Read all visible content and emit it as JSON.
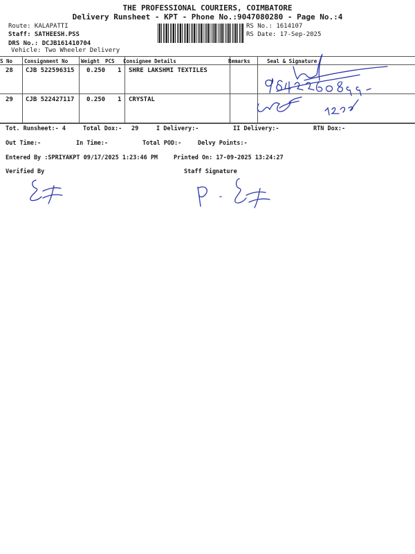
{
  "header": {
    "company": "THE PROFESSIONAL COURIERS, COIMBATORE",
    "subtitle": "Delivery Runsheet - KPT - Phone No.:9047080280 - Page No.:4",
    "route": "Route: KALAPATTI",
    "staff": "Staff: SATHEESH.PSS",
    "drs_no": "DRS No.: DCJB161410704",
    "vehicle": "Vehicle: Two Wheeler Delivery",
    "rs_no": "RS No.: 1614107",
    "rs_date": "RS Date: 17-Sep-2025"
  },
  "table": {
    "columns": [
      "S No",
      "Consignment No",
      "Weight",
      "PCS",
      "Consignee Details",
      "Remarks",
      "Seal & Signature"
    ],
    "rows": [
      {
        "sno": "28",
        "consignment": "CJB 522596315",
        "weight": "0.250",
        "pcs": "1",
        "consignee": "SHRE LAKSHMI TEXTILES",
        "remarks": ""
      },
      {
        "sno": "29",
        "consignment": "CJB 522427117",
        "weight": "0.250",
        "pcs": "1",
        "consignee": "CRYSTAL",
        "remarks": ""
      }
    ]
  },
  "summary": {
    "tot_runsheet": "Tot. Runsheet:- 4",
    "total_dox": "Total Dox:-",
    "total_dox_value": "29",
    "i_delivery": "I Delivery:-",
    "ii_delivery": "II Delivery:-",
    "rtn_dox": "RTN Dox:-",
    "out_time": "Out Time:-",
    "in_time": "In Time:-",
    "total_pod": "Total POD:-",
    "delvy_points": "Delvy Points:-",
    "entered_by": "Entered By :SPRIYAKPT 09/17/2025 1:23:46 PM",
    "printed_on": "Printed On: 17-09-2025 13:24:27",
    "verified_by": "Verified By",
    "staff_signature": "Staff Signature"
  },
  "handwriting": {
    "seal_note": "9842260899"
  },
  "colors": {
    "ink": "#2a36a8",
    "text": "#1a1a1a"
  }
}
